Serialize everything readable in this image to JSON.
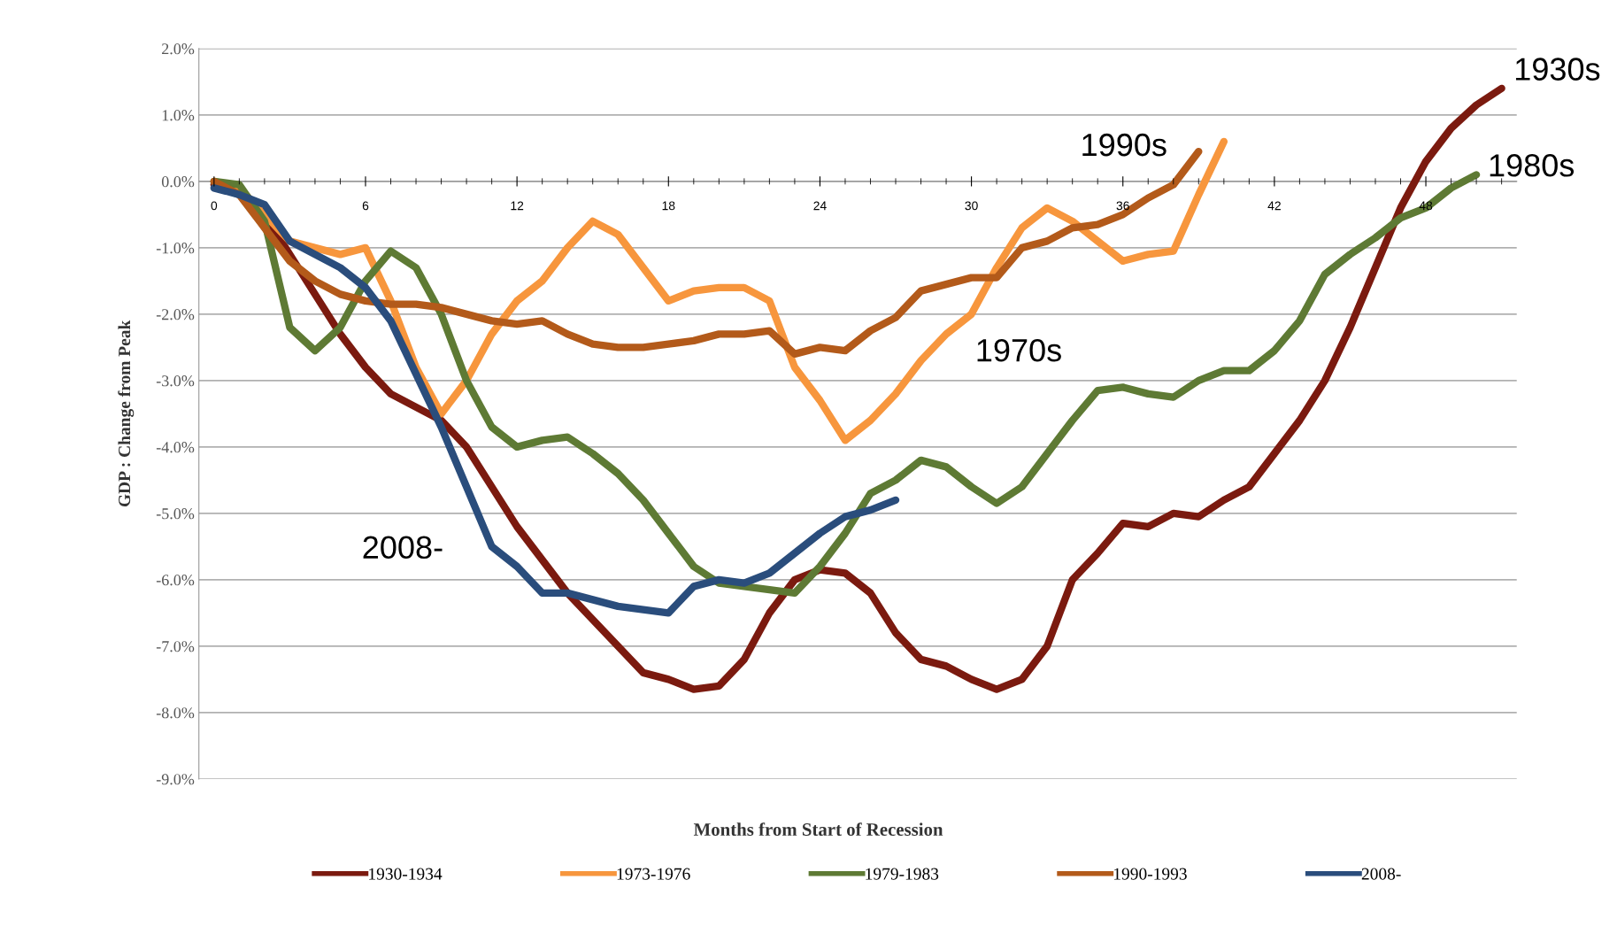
{
  "chart_data": {
    "type": "line",
    "xlabel": "Months from Start of Recession",
    "ylabel": "GDP : Change from Peak",
    "xlim": [
      -0.6,
      51.6
    ],
    "xticks": [
      0,
      6,
      12,
      18,
      24,
      30,
      36,
      42,
      48
    ],
    "ylim": [
      -9,
      2
    ],
    "yticks": [
      {
        "value": 2,
        "label": "2.0%"
      },
      {
        "value": 1,
        "label": "1.0%"
      },
      {
        "value": 0,
        "label": "0.0%"
      },
      {
        "value": -1,
        "label": "-1.0%"
      },
      {
        "value": -2,
        "label": "-2.0%"
      },
      {
        "value": -3,
        "label": "-3.0%"
      },
      {
        "value": -4,
        "label": "-4.0%"
      },
      {
        "value": -5,
        "label": "-5.0%"
      },
      {
        "value": -6,
        "label": "-6.0%"
      },
      {
        "value": -7,
        "label": "-7.0%"
      },
      {
        "value": -8,
        "label": "-8.0%"
      },
      {
        "value": -9,
        "label": "-9.0%"
      }
    ],
    "grid": "y",
    "legend": "bottom",
    "marker": "none",
    "line_style": "solid",
    "series": [
      {
        "name": "1930-1934",
        "color": "#7b1a0f",
        "x": [
          0,
          1,
          2,
          3,
          4,
          5,
          6,
          7,
          8,
          9,
          10,
          11,
          12,
          13,
          14,
          15,
          16,
          17,
          18,
          19,
          20,
          21,
          22,
          23,
          24,
          25,
          26,
          27,
          28,
          29,
          30,
          31,
          32,
          33,
          34,
          35,
          36,
          37,
          38,
          39,
          40,
          41,
          42,
          43,
          44,
          45,
          46,
          47,
          48,
          49,
          50,
          51
        ],
        "values": [
          -0.05,
          -0.2,
          -0.5,
          -1.1,
          -1.7,
          -2.3,
          -2.8,
          -3.2,
          -3.4,
          -3.6,
          -4.0,
          -4.6,
          -5.2,
          -5.7,
          -6.2,
          -6.6,
          -7.0,
          -7.4,
          -7.5,
          -7.65,
          -7.6,
          -7.2,
          -6.5,
          -6.0,
          -5.85,
          -5.9,
          -6.2,
          -6.8,
          -7.2,
          -7.3,
          -7.5,
          -7.65,
          -7.5,
          -7.0,
          -6.0,
          -5.6,
          -5.15,
          -5.2,
          -5.0,
          -5.05,
          -4.8,
          -4.6,
          -4.1,
          -3.6,
          -3.0,
          -2.2,
          -1.3,
          -0.4,
          0.3,
          0.8,
          1.15,
          1.4
        ]
      },
      {
        "name": "1973-1976",
        "color": "#f7963d",
        "x": [
          0,
          1,
          2,
          3,
          4,
          5,
          6,
          7,
          8,
          9,
          10,
          11,
          12,
          13,
          14,
          15,
          16,
          17,
          18,
          19,
          20,
          21,
          22,
          23,
          24,
          25,
          26,
          27,
          28,
          29,
          30,
          31,
          32,
          33,
          34,
          35,
          36,
          37,
          38,
          39,
          40
        ],
        "values": [
          0,
          -0.1,
          -0.5,
          -0.9,
          -1.0,
          -1.1,
          -1.0,
          -1.8,
          -2.8,
          -3.5,
          -3.0,
          -2.3,
          -1.8,
          -1.5,
          -1.0,
          -0.6,
          -0.8,
          -1.3,
          -1.8,
          -1.65,
          -1.6,
          -1.6,
          -1.8,
          -2.8,
          -3.3,
          -3.9,
          -3.6,
          -3.2,
          -2.7,
          -2.3,
          -2.0,
          -1.3,
          -0.7,
          -0.4,
          -0.6,
          -0.9,
          -1.2,
          -1.1,
          -1.05,
          -0.2,
          0.6
        ]
      },
      {
        "name": "1979-1983",
        "color": "#5e7a34",
        "x": [
          0,
          1,
          2,
          3,
          4,
          5,
          6,
          7,
          8,
          9,
          10,
          11,
          12,
          13,
          14,
          15,
          16,
          17,
          18,
          19,
          20,
          21,
          22,
          23,
          24,
          25,
          26,
          27,
          28,
          29,
          30,
          31,
          32,
          33,
          34,
          35,
          36,
          37,
          38,
          39,
          40,
          41,
          42,
          43,
          44,
          45,
          46,
          47,
          48,
          49,
          50
        ],
        "values": [
          0,
          -0.05,
          -0.6,
          -2.2,
          -2.55,
          -2.2,
          -1.5,
          -1.05,
          -1.3,
          -2.0,
          -3.0,
          -3.7,
          -4.0,
          -3.9,
          -3.85,
          -4.1,
          -4.4,
          -4.8,
          -5.3,
          -5.8,
          -6.05,
          -6.1,
          -6.15,
          -6.2,
          -5.8,
          -5.3,
          -4.7,
          -4.5,
          -4.2,
          -4.3,
          -4.6,
          -4.85,
          -4.6,
          -4.1,
          -3.6,
          -3.15,
          -3.1,
          -3.2,
          -3.25,
          -3.0,
          -2.85,
          -2.85,
          -2.55,
          -2.1,
          -1.4,
          -1.1,
          -0.85,
          -0.55,
          -0.4,
          -0.1,
          0.1
        ]
      },
      {
        "name": "1990-1993",
        "color": "#b35a1a",
        "x": [
          0,
          1,
          2,
          3,
          4,
          5,
          6,
          7,
          8,
          9,
          10,
          11,
          12,
          13,
          14,
          15,
          16,
          17,
          18,
          19,
          20,
          21,
          22,
          23,
          24,
          25,
          26,
          27,
          28,
          29,
          30,
          31,
          32,
          33,
          34,
          35,
          36,
          37,
          38,
          39
        ],
        "values": [
          0,
          -0.2,
          -0.7,
          -1.2,
          -1.5,
          -1.7,
          -1.8,
          -1.85,
          -1.85,
          -1.9,
          -2.0,
          -2.1,
          -2.15,
          -2.1,
          -2.3,
          -2.45,
          -2.5,
          -2.5,
          -2.45,
          -2.4,
          -2.3,
          -2.3,
          -2.25,
          -2.6,
          -2.5,
          -2.55,
          -2.25,
          -2.05,
          -1.65,
          -1.55,
          -1.45,
          -1.45,
          -1.0,
          -0.9,
          -0.7,
          -0.65,
          -0.5,
          -0.25,
          -0.05,
          0.45
        ]
      },
      {
        "name": "2008-",
        "color": "#2a4d7c",
        "x": [
          0,
          1,
          2,
          3,
          4,
          5,
          6,
          7,
          8,
          9,
          10,
          11,
          12,
          13,
          14,
          15,
          16,
          17,
          18,
          19,
          20,
          21,
          22,
          23,
          24,
          25,
          26,
          27
        ],
        "values": [
          -0.1,
          -0.2,
          -0.35,
          -0.9,
          -1.1,
          -1.3,
          -1.6,
          -2.1,
          -2.9,
          -3.7,
          -4.6,
          -5.5,
          -5.8,
          -6.2,
          -6.2,
          -6.3,
          -6.4,
          -6.45,
          -6.5,
          -6.1,
          -6.0,
          -6.05,
          -5.9,
          -5.6,
          -5.3,
          -5.05,
          -4.95,
          -4.8
        ]
      }
    ],
    "annotations": [
      "1930s",
      "1990s",
      "1970s",
      "1980s",
      "2008-"
    ]
  }
}
